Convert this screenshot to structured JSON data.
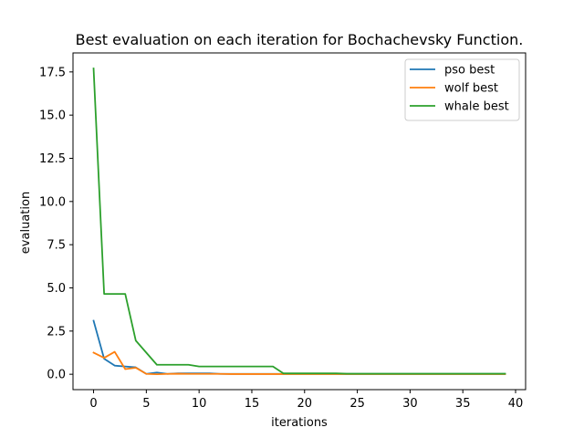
{
  "chart_data": {
    "type": "line",
    "title": "Best evaluation on each iteration for Bochachevsky Function.",
    "xlabel": "iterations",
    "ylabel": "evaluation",
    "xlim": [
      -1.95,
      40.95
    ],
    "ylim": [
      -0.89,
      18.6
    ],
    "xticks": [
      0,
      5,
      10,
      15,
      20,
      25,
      30,
      35,
      40
    ],
    "yticks": [
      0.0,
      2.5,
      5.0,
      7.5,
      10.0,
      12.5,
      15.0,
      17.5
    ],
    "ytick_labels": [
      "0.0",
      "2.5",
      "5.0",
      "7.5",
      "10.0",
      "12.5",
      "15.0",
      "17.5"
    ],
    "grid": false,
    "legend_position": "top-right",
    "x": [
      0,
      1,
      2,
      3,
      4,
      5,
      6,
      7,
      8,
      9,
      10,
      11,
      12,
      13,
      14,
      15,
      16,
      17,
      18,
      19,
      20,
      21,
      22,
      23,
      24,
      25,
      26,
      27,
      28,
      29,
      30,
      31,
      32,
      33,
      34,
      35,
      36,
      37,
      38,
      39
    ],
    "series": [
      {
        "name": "pso best",
        "color": "#1f77b4",
        "values": [
          3.1,
          0.9,
          0.5,
          0.45,
          0.4,
          0.02,
          0.1,
          0.02,
          0.05,
          0.05,
          0.05,
          0.05,
          0.02,
          0.02,
          0.02,
          0.02,
          0.02,
          0.02,
          0.02,
          0.02,
          0.02,
          0.02,
          0.02,
          0.02,
          0.02,
          0.02,
          0.02,
          0.02,
          0.02,
          0.02,
          0.02,
          0.02,
          0.02,
          0.02,
          0.02,
          0.02,
          0.02,
          0.02,
          0.02,
          0.02
        ]
      },
      {
        "name": "wolf best",
        "color": "#ff7f0e",
        "values": [
          1.25,
          0.95,
          1.3,
          0.3,
          0.38,
          0.02,
          0.0,
          0.02,
          0.03,
          0.02,
          0.02,
          0.02,
          0.02,
          0.01,
          0.01,
          0.01,
          0.01,
          0.01,
          0.01,
          0.01,
          0.01,
          0.01,
          0.01,
          0.01,
          0.01,
          0.01,
          0.01,
          0.01,
          0.01,
          0.01,
          0.01,
          0.01,
          0.01,
          0.01,
          0.01,
          0.01,
          0.01,
          0.01,
          0.01,
          0.01
        ]
      },
      {
        "name": "whale best",
        "color": "#2ca02c",
        "values": [
          17.7,
          4.65,
          4.65,
          4.65,
          1.95,
          1.25,
          0.55,
          0.55,
          0.55,
          0.55,
          0.45,
          0.45,
          0.45,
          0.45,
          0.45,
          0.45,
          0.45,
          0.45,
          0.05,
          0.05,
          0.05,
          0.05,
          0.05,
          0.05,
          0.03,
          0.03,
          0.03,
          0.03,
          0.03,
          0.03,
          0.03,
          0.03,
          0.03,
          0.03,
          0.03,
          0.03,
          0.03,
          0.03,
          0.03,
          0.03
        ]
      }
    ]
  }
}
